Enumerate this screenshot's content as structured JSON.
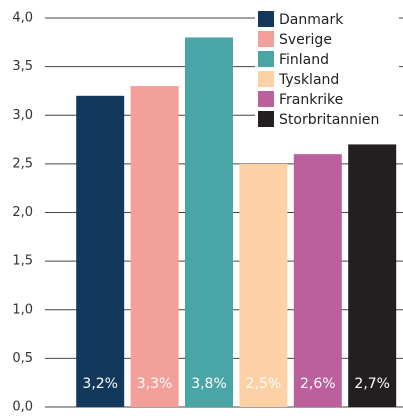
{
  "chart_data": {
    "type": "bar",
    "categories": [
      "Danmark",
      "Sverige",
      "Finland",
      "Tyskland",
      "Frankrike",
      "Storbritannien"
    ],
    "values": [
      3.2,
      3.3,
      3.8,
      2.5,
      2.6,
      2.7
    ],
    "value_labels": [
      "3,2%",
      "3,3%",
      "3,8%",
      "2,5%",
      "2,6%",
      "2,7%"
    ],
    "colors": [
      "#12395b",
      "#f4a09a",
      "#4aa5a6",
      "#fdd0a5",
      "#bb5f9d",
      "#231f20"
    ],
    "ylim": [
      0,
      4
    ],
    "yticks": [
      {
        "value": 0,
        "label": "0,0"
      },
      {
        "value": 0.5,
        "label": "0,5"
      },
      {
        "value": 1,
        "label": "1,0"
      },
      {
        "value": 1.5,
        "label": "1,5"
      },
      {
        "value": 2,
        "label": "2,0"
      },
      {
        "value": 2.5,
        "label": "2,5"
      },
      {
        "value": 3,
        "label": "3,0"
      },
      {
        "value": 3.5,
        "label": "3,5"
      },
      {
        "value": 4,
        "label": "4,0"
      }
    ],
    "grid": true,
    "legend": "top-right"
  }
}
